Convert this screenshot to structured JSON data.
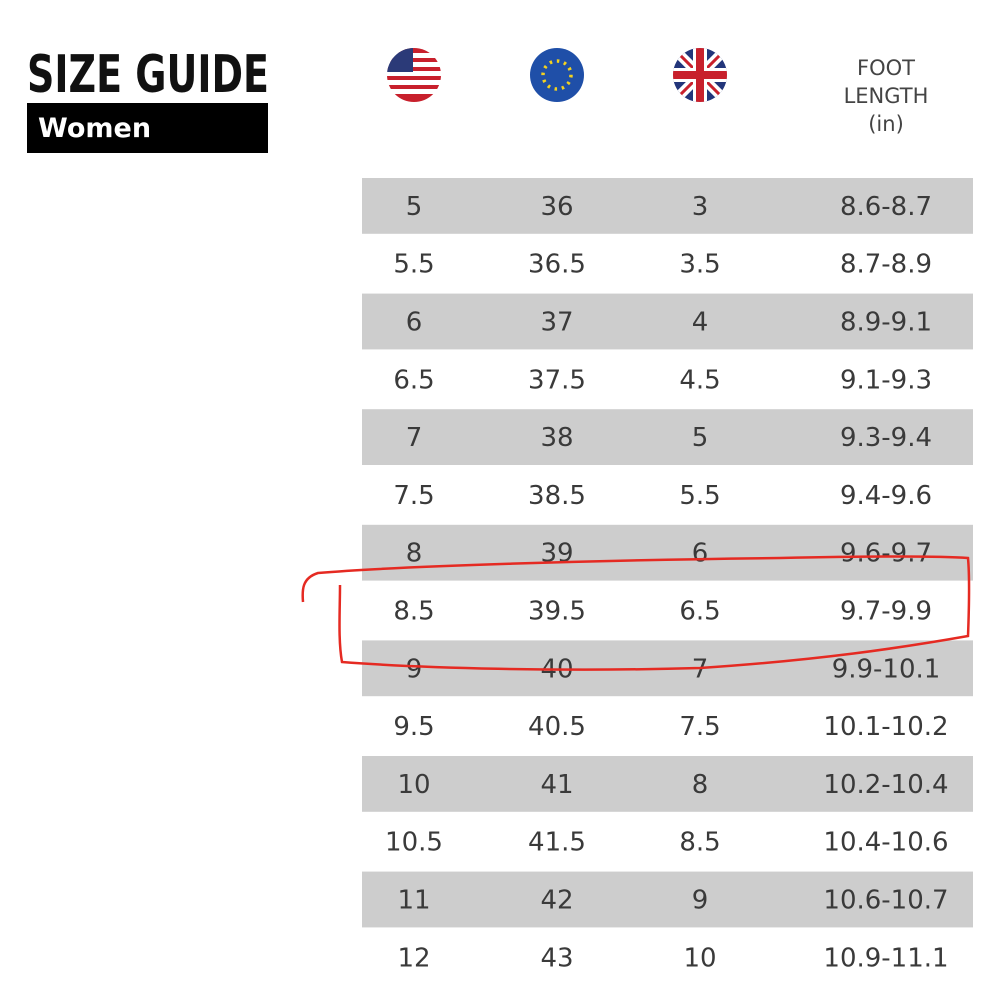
{
  "header": {
    "title": "SIZE GUIDE",
    "subtitle": "Women"
  },
  "table": {
    "foot_length_header": [
      "FOOT",
      "LENGTH",
      "(in)"
    ],
    "rows": [
      [
        "5",
        "36",
        "3",
        "8.6-8.7"
      ],
      [
        "5.5",
        "36.5",
        "3.5",
        "8.7-8.9"
      ],
      [
        "6",
        "37",
        "4",
        "8.9-9.1"
      ],
      [
        "6.5",
        "37.5",
        "4.5",
        "9.1-9.3"
      ],
      [
        "7",
        "38",
        "5",
        "9.3-9.4"
      ],
      [
        "7.5",
        "38.5",
        "5.5",
        "9.4-9.6"
      ],
      [
        "8",
        "39",
        "6",
        "9.6-9.7"
      ],
      [
        "8.5",
        "39.5",
        "6.5",
        "9.7-9.9"
      ],
      [
        "9",
        "40",
        "7",
        "9.9-10.1"
      ],
      [
        "9.5",
        "40.5",
        "7.5",
        "10.1-10.2"
      ],
      [
        "10",
        "41",
        "8",
        "10.2-10.4"
      ],
      [
        "10.5",
        "41.5",
        "8.5",
        "10.4-10.6"
      ],
      [
        "11",
        "42",
        "9",
        "10.6-10.7"
      ],
      [
        "12",
        "43",
        "10",
        "10.9-11.1"
      ]
    ]
  }
}
